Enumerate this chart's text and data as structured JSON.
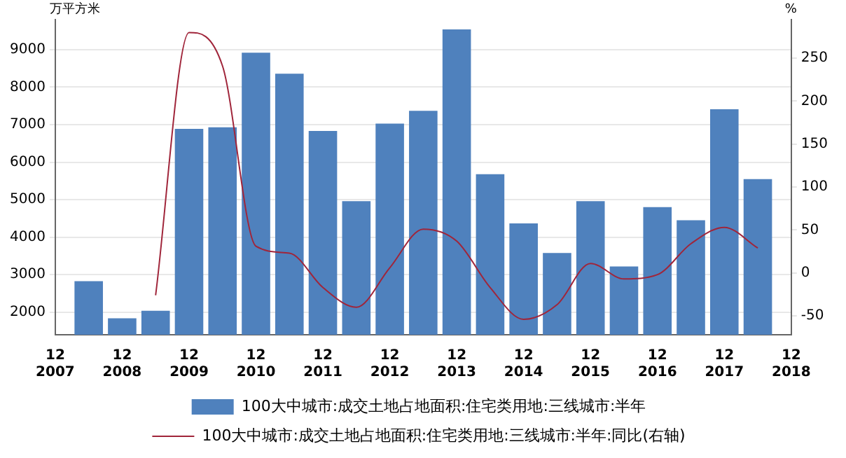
{
  "chart_data": {
    "type": "bar",
    "ylabel": "万平方米",
    "y2label": "%",
    "x": [
      "2008-06",
      "2008-12",
      "2009-06",
      "2009-12",
      "2010-06",
      "2010-12",
      "2011-06",
      "2011-12",
      "2012-06",
      "2012-12",
      "2013-06",
      "2013-12",
      "2014-06",
      "2014-12",
      "2015-06",
      "2015-12",
      "2016-06",
      "2016-12",
      "2017-06",
      "2017-12",
      "2018-06"
    ],
    "series": [
      {
        "name": "100大中城市:成交土地占地面积:住宅类用地:三线城市:半年",
        "color": "#4f81bd",
        "values": [
          2830,
          1840,
          2040,
          6890,
          6930,
          8920,
          8360,
          6830,
          4960,
          7030,
          7370,
          9540,
          5680,
          4370,
          3580,
          4960,
          3220,
          4800,
          4450,
          7410,
          5550
        ]
      },
      {
        "name": "100大中城市:成交土地占地面积:住宅类用地:三线城市:半年:同比(右轴)",
        "type": "line",
        "axis": "y2",
        "color": "#a0253a",
        "marker": "none",
        "values": [
          null,
          null,
          -26,
          280,
          241,
          31,
          23,
          -17,
          -40,
          6,
          51,
          37,
          -17,
          -54,
          -37,
          11,
          -7,
          -2,
          34,
          53,
          29
        ]
      }
    ],
    "xlim": [
      "2007-12",
      "2018-12"
    ],
    "xticks": [
      {
        "value": "2007-12",
        "label": "12\n2007"
      },
      {
        "value": "2008-12",
        "label": "12\n2008"
      },
      {
        "value": "2009-12",
        "label": "12\n2009"
      },
      {
        "value": "2010-12",
        "label": "12\n2010"
      },
      {
        "value": "2011-12",
        "label": "12\n2011"
      },
      {
        "value": "2012-12",
        "label": "12\n2012"
      },
      {
        "value": "2013-12",
        "label": "12\n2013"
      },
      {
        "value": "2014-12",
        "label": "12\n2014"
      },
      {
        "value": "2015-12",
        "label": "12\n2015"
      },
      {
        "value": "2016-12",
        "label": "12\n2016"
      },
      {
        "value": "2017-12",
        "label": "12\n2017"
      },
      {
        "value": "2018-12",
        "label": "12\n2018"
      }
    ],
    "ylim": [
      1400,
      9800
    ],
    "yticks": [
      2000,
      3000,
      4000,
      5000,
      6000,
      7000,
      8000,
      9000
    ],
    "y2lim": [
      -72,
      295
    ],
    "y2ticks": [
      -50,
      0,
      50,
      100,
      150,
      200,
      250
    ],
    "grid": "y",
    "legend": "bottom"
  }
}
